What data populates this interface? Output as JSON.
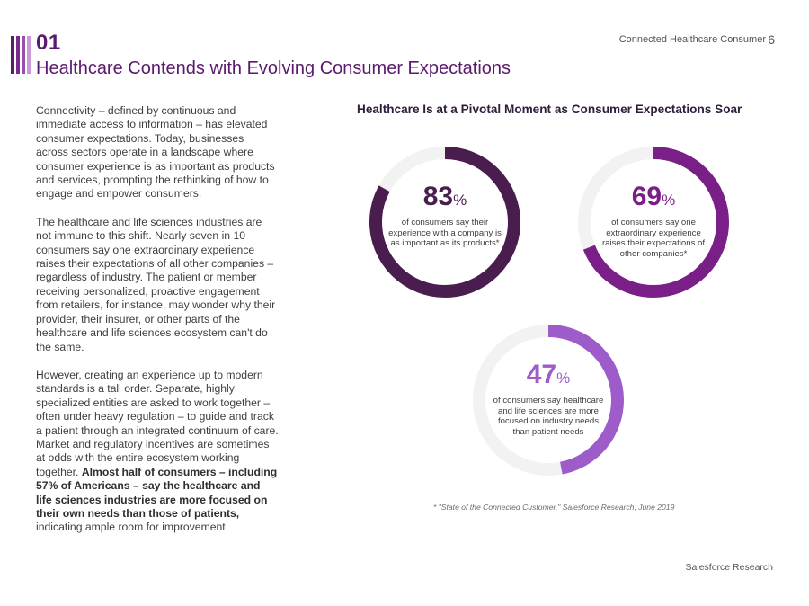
{
  "header": {
    "section_number": "01",
    "title": "Healthcare Contends with Evolving Consumer Expectations",
    "running_header": "Connected Healthcare Consumer",
    "page_number": "6",
    "accent_colors": [
      "#5a1b6e",
      "#7a2a8c",
      "#9a4fb0",
      "#c79ad6"
    ]
  },
  "body": {
    "paragraph1": "Connectivity – defined by continuous and immediate access to information – has elevated consumer expectations. Today, businesses across sectors operate in a landscape where consumer experience is as important as products and services, prompting the rethinking of how to engage and empower consumers.",
    "paragraph2": "The healthcare and life sciences industries are not immune to this shift. Nearly seven in 10 consumers say one extraordinary experience raises their expectations of all other companies – regardless of industry. The patient or member receiving personalized, proactive engagement from retailers, for instance, may wonder why their provider, their insurer, or other parts of the healthcare and life sciences ecosystem can't do the same.",
    "paragraph3_plain": "However, creating an experience up to modern standards is a tall order. Separate, highly specialized entities are asked to work together – often under heavy regulation – to guide and track a patient through an integrated continuum of care. Market and regulatory incentives are sometimes at odds with the entire ecosystem working together. ",
    "paragraph3_bold": "Almost half of consumers – including 57% of Americans – say the healthcare and life sciences industries are more focused on their own needs than those of patients,",
    "paragraph3_tail": " indicating ample room for improvement."
  },
  "chart_data": {
    "type": "pie",
    "title": "Healthcare Is at a Pivotal Moment as Consumer Expectations Soar",
    "series": [
      {
        "name": "company experience",
        "value": 83,
        "unit": "%",
        "description": "of consumers say their experience with a company is as important as its products*",
        "color": "#4a1d4f"
      },
      {
        "name": "extraordinary experience",
        "value": 69,
        "unit": "%",
        "description": "of consumers say one extraordinary experience raises their expectations of other companies*",
        "color": "#7a1f87"
      },
      {
        "name": "industry focus",
        "value": 47,
        "unit": "%",
        "description": "of consumers say healthcare and life sciences are more focused on industry needs than patient needs",
        "color": "#9d5cc9"
      }
    ],
    "track_color": "#f2f2f2",
    "footnote": "* \"State of the Connected Customer,\" Salesforce Research, June 2019"
  },
  "footer": {
    "brand": "Salesforce Research"
  }
}
